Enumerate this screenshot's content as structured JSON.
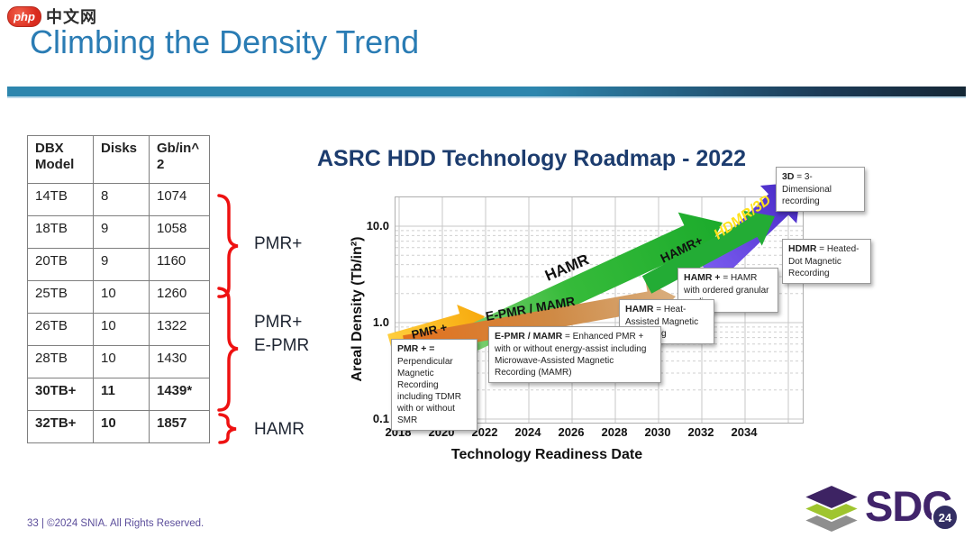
{
  "header": {
    "logo_badge": "php",
    "logo_text": "中文网",
    "title": "Climbing the Density Trend"
  },
  "table": {
    "headers": [
      "DBX Model",
      "Disks",
      "Gb/in^ 2"
    ],
    "rows": [
      {
        "model": "14TB",
        "disks": "8",
        "density": "1074",
        "bold": false
      },
      {
        "model": "18TB",
        "disks": "9",
        "density": "1058",
        "bold": false
      },
      {
        "model": "20TB",
        "disks": "9",
        "density": "1160",
        "bold": false
      },
      {
        "model": "25TB",
        "disks": "10",
        "density": "1260",
        "bold": false
      },
      {
        "model": "26TB",
        "disks": "10",
        "density": "1322",
        "bold": false
      },
      {
        "model": "28TB",
        "disks": "10",
        "density": "1430",
        "bold": false
      },
      {
        "model": "30TB+",
        "disks": "11",
        "density": "1439*",
        "bold": true
      },
      {
        "model": "32TB+",
        "disks": "10",
        "density": "1857",
        "bold": true
      }
    ]
  },
  "braces": [
    {
      "label": "PMR+",
      "lines": [
        "PMR+"
      ],
      "color": "#ee1111"
    },
    {
      "label": "PMR+ E-PMR",
      "lines": [
        "PMR+",
        "E-PMR"
      ],
      "color": "#ee1111"
    },
    {
      "label": "HAMR",
      "lines": [
        "HAMR"
      ],
      "color": "#ee1111"
    }
  ],
  "chart_data": {
    "type": "line",
    "subtype": "roadmap-arrows",
    "title": "ASRC HDD Technology Roadmap - 2022",
    "xlabel": "Technology Readiness Date",
    "ylabel": "Areal Density (Tb/in²)",
    "x_ticks": [
      "2018",
      "2020",
      "2022",
      "2024",
      "2026",
      "2028",
      "2030",
      "2032",
      "2034"
    ],
    "y_ticks": [
      "10.0",
      "1.0",
      "0.1"
    ],
    "y_scale": "log",
    "xlim": [
      2017.8,
      2036.8
    ],
    "ylim": [
      0.1,
      20
    ],
    "grid": true,
    "series": [
      {
        "name": "PMR +",
        "x": [
          2017.8,
          2022.0
        ],
        "y": [
          0.7,
          1.1
        ],
        "color": "#fcb815",
        "label_color": "#111111"
      },
      {
        "name": "E-PMR / MAMR",
        "x": [
          2018.4,
          2030.8
        ],
        "y": [
          0.6,
          1.8
        ],
        "color": "#e2761b",
        "label_color": "#111111"
      },
      {
        "name": "HAMR",
        "x": [
          2020.2,
          2033.0
        ],
        "y": [
          0.55,
          8.0
        ],
        "color": "#27b42f",
        "label_color": "#111111"
      },
      {
        "name": "HDMR/3D",
        "x": [
          2032.4,
          2036.7
        ],
        "y": [
          3.2,
          20.0
        ],
        "color": "#5742d9",
        "label_color": "#ffe11a"
      },
      {
        "name": "HAMR+",
        "x": [
          2029.6,
          2035.4
        ],
        "y": [
          2.4,
          10.0
        ],
        "color": "#23ac35",
        "label_color": "#111111"
      }
    ],
    "annotations": [
      {
        "term": "3D",
        "rest": " = 3-Dimensional recording"
      },
      {
        "term": "HDMR",
        "rest": " = Heated-Dot Magnetic Recording"
      },
      {
        "term": "HAMR +",
        "rest": " = HAMR with ordered granular media"
      },
      {
        "term": "HAMR",
        "rest": " = Heat-Assisted Magnetic Recording"
      },
      {
        "term": "E-PMR / MAMR",
        "rest": " = Enhanced PMR + with or without energy-assist including Microwave-Assisted Magnetic Recording (MAMR)"
      },
      {
        "term": "PMR + =",
        "rest": " Perpendicular Magnetic Recording including TDMR with or without SMR"
      }
    ],
    "legend_position": "none"
  },
  "footer": {
    "text": "33 | ©2024 SNIA. All Rights Reserved.",
    "sdc_text": "SDC",
    "sdc_year": "24"
  }
}
